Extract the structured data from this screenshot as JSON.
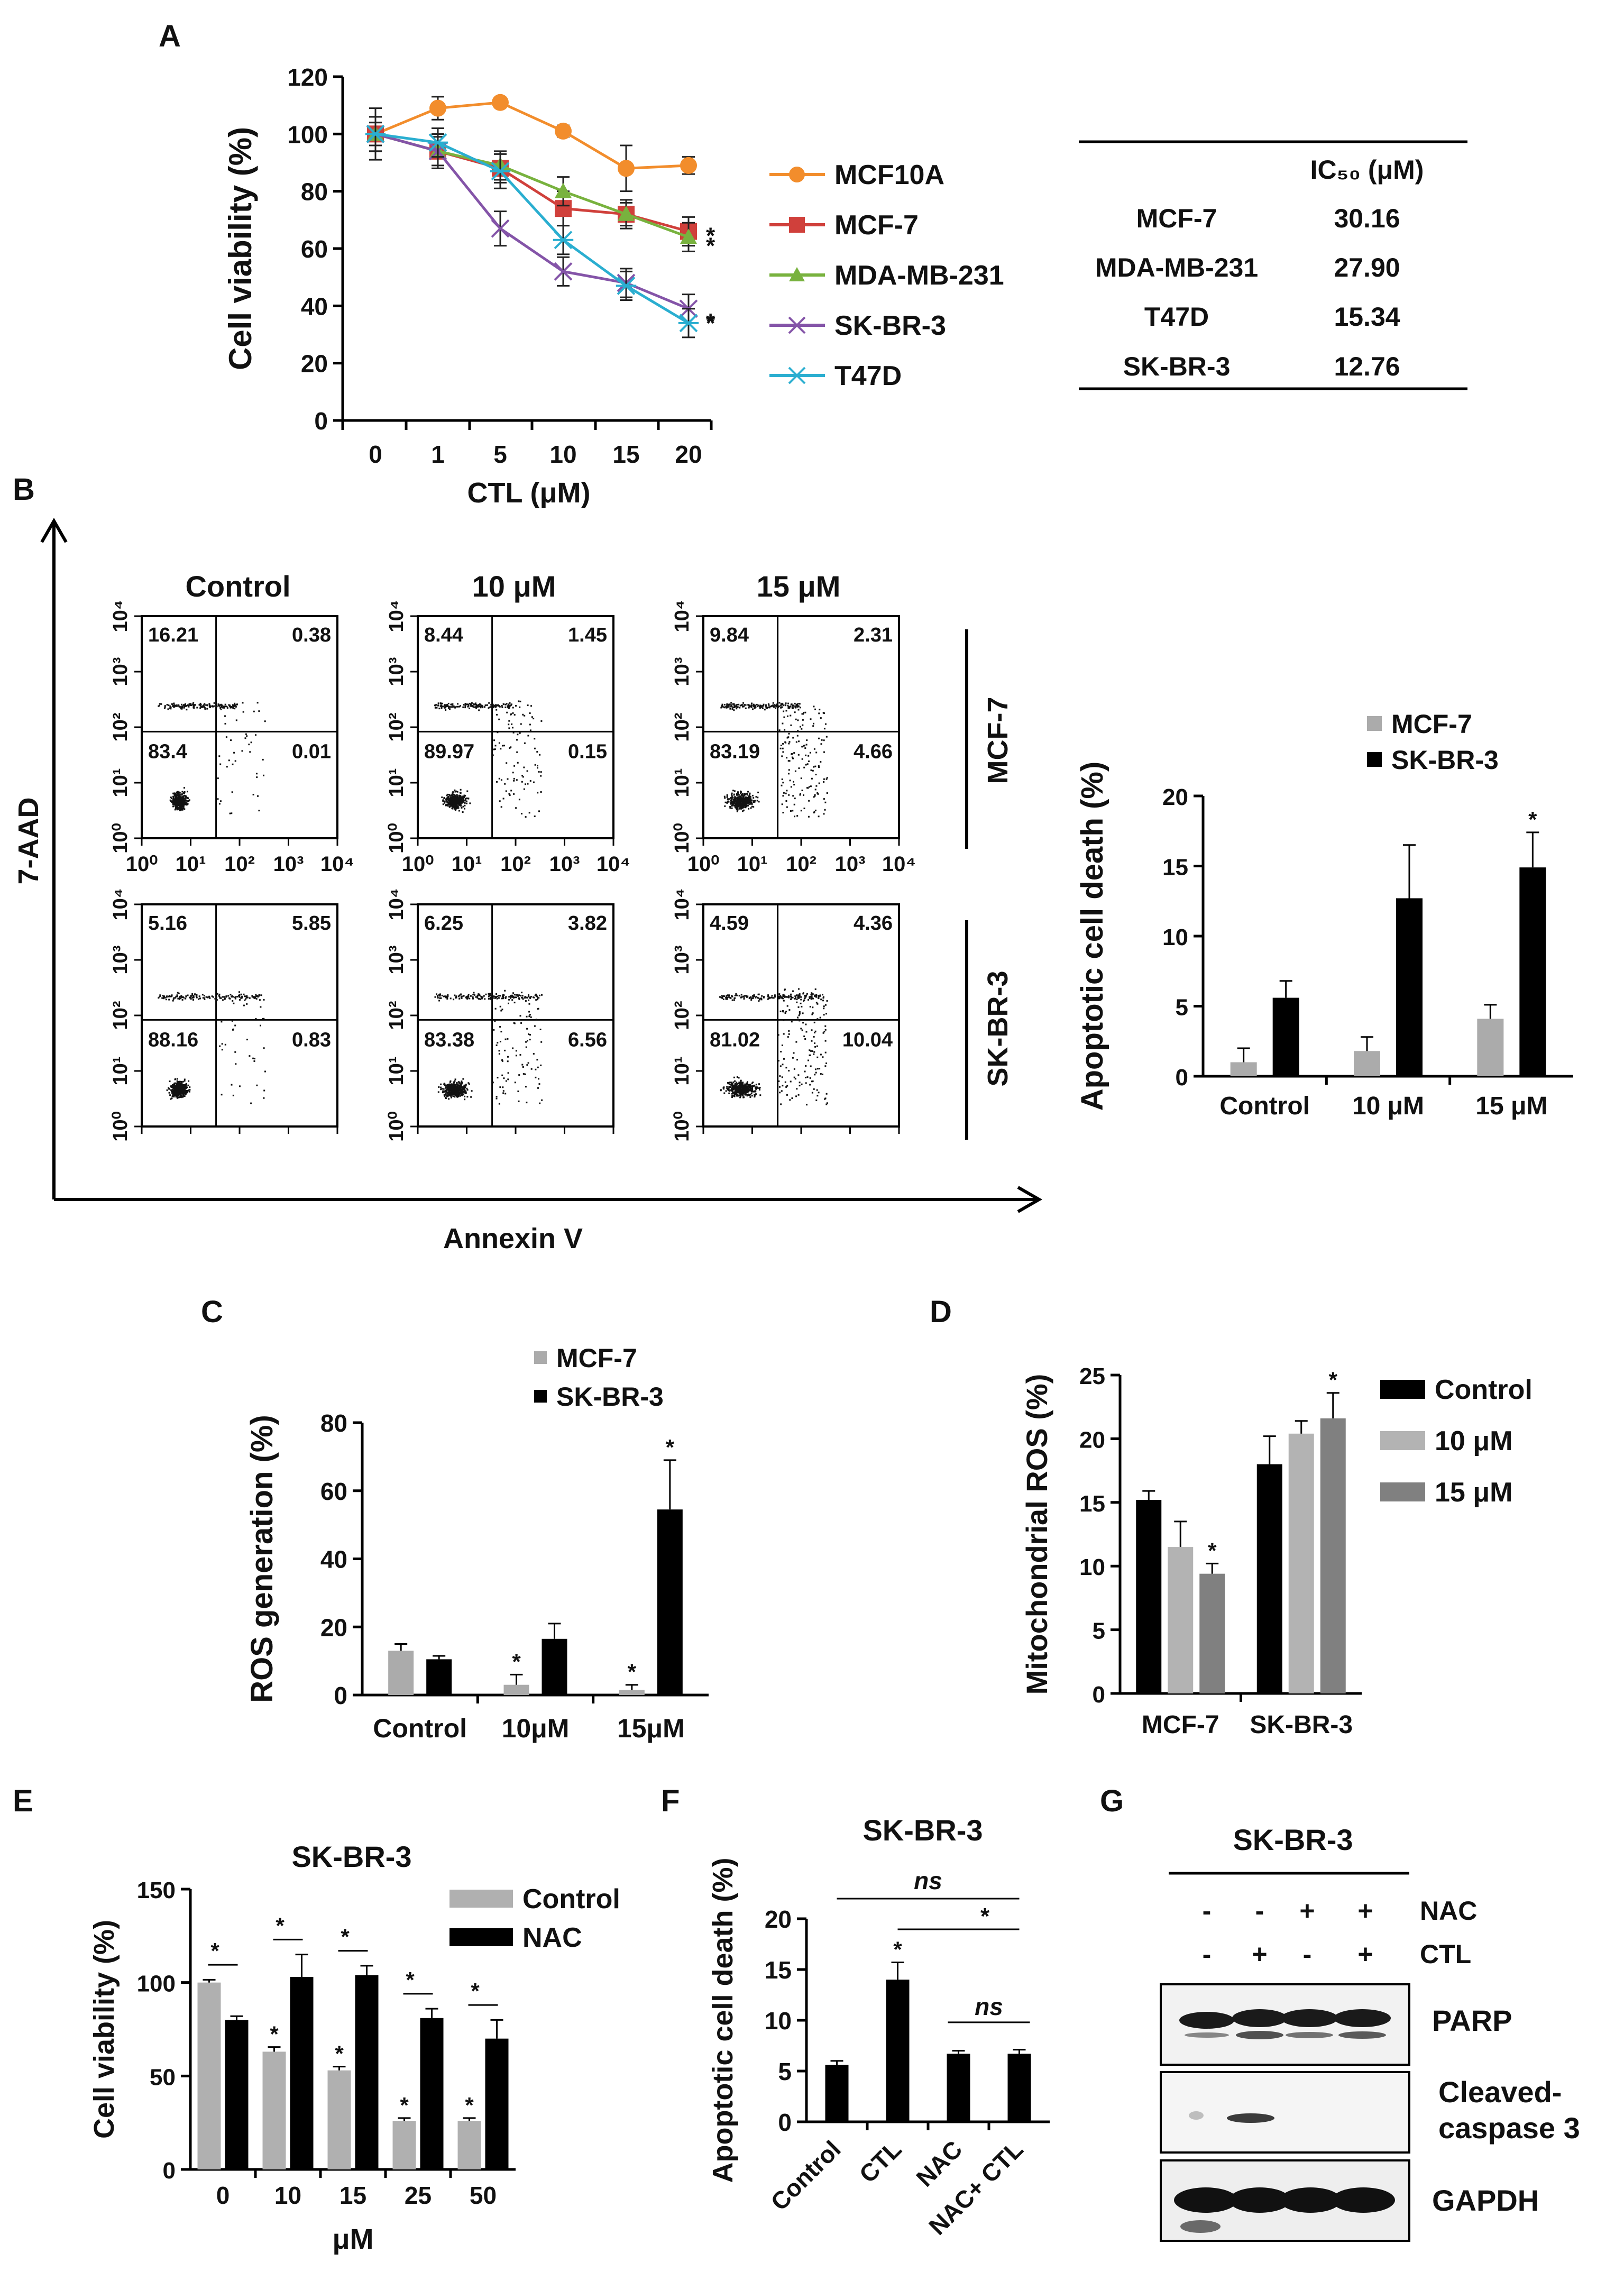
{
  "panel_letters": [
    "A",
    "B",
    "C",
    "D",
    "E",
    "F",
    "G"
  ],
  "chart_data": [
    {
      "panel": "A",
      "type": "line",
      "xlabel": "CTL (μM)",
      "ylabel": "Cell viability (%)",
      "categories": [
        "0",
        "1",
        "5",
        "10",
        "15",
        "20"
      ],
      "ylim": [
        0,
        120
      ],
      "yticks": [
        0,
        20,
        40,
        60,
        80,
        100,
        120
      ],
      "series": [
        {
          "name": "MCF10A",
          "color": "#f28d2c",
          "marker": "circle",
          "values": [
            100,
            109,
            111,
            101,
            88,
            89
          ],
          "err": [
            9,
            4,
            0,
            2,
            8,
            3
          ],
          "sig": false
        },
        {
          "name": "MCF-7",
          "color": "#d0403b",
          "marker": "square",
          "values": [
            100,
            94,
            88,
            74,
            72,
            66
          ],
          "err": [
            4,
            6,
            5,
            6,
            4,
            5
          ],
          "sig": true
        },
        {
          "name": "MDA-MB-231",
          "color": "#78b23e",
          "marker": "triangle",
          "values": [
            100,
            94,
            89,
            80,
            72,
            64
          ],
          "err": [
            4,
            5,
            5,
            5,
            5,
            5
          ],
          "sig": true
        },
        {
          "name": "SK-BR-3",
          "color": "#8454a8",
          "marker": "x",
          "values": [
            100,
            94,
            67,
            52,
            48,
            39
          ],
          "err": [
            6,
            6,
            6,
            5,
            5,
            5
          ],
          "sig": true
        },
        {
          "name": "T47D",
          "color": "#2aaed0",
          "marker": "star",
          "values": [
            100,
            97,
            87,
            63,
            47,
            34
          ],
          "err": [
            6,
            5,
            6,
            5,
            5,
            5
          ],
          "sig": true
        }
      ]
    },
    {
      "panel": "B",
      "type": "bar",
      "ylabel": "Apoptotic cell death (%)",
      "categories": [
        "Control",
        "10 μM",
        "15 μM"
      ],
      "ylim": [
        0,
        20
      ],
      "yticks": [
        0,
        5,
        10,
        15,
        20
      ],
      "series": [
        {
          "name": "MCF-7",
          "color": "#ababab",
          "values": [
            1,
            1.8,
            4.1
          ],
          "err": [
            1,
            1,
            1
          ],
          "sig": [
            false,
            false,
            false
          ]
        },
        {
          "name": "SK-BR-3",
          "color": "#000000",
          "values": [
            5.6,
            12.7,
            14.9
          ],
          "err": [
            1.2,
            3.8,
            2.5
          ],
          "sig": [
            false,
            false,
            true
          ]
        }
      ]
    },
    {
      "panel": "C",
      "type": "bar",
      "ylabel": "ROS generation (%)",
      "categories": [
        "Control",
        "10μM",
        "15μM"
      ],
      "ylim": [
        0,
        80
      ],
      "yticks": [
        0,
        20,
        40,
        60,
        80
      ],
      "series": [
        {
          "name": "MCF-7",
          "color": "#ababab",
          "values": [
            13,
            3,
            1.5
          ],
          "err": [
            2,
            3,
            1.5
          ],
          "sig": [
            false,
            true,
            true
          ]
        },
        {
          "name": "SK-BR-3",
          "color": "#000000",
          "values": [
            10.5,
            16.5,
            54.5
          ],
          "err": [
            1,
            4.5,
            14.5
          ],
          "sig": [
            false,
            false,
            true
          ]
        }
      ]
    },
    {
      "panel": "D",
      "type": "bar",
      "ylabel": "Mitochondrial ROS (%)",
      "categories": [
        "MCF-7",
        "SK-BR-3"
      ],
      "ylim": [
        0,
        25
      ],
      "yticks": [
        0,
        5,
        10,
        15,
        20,
        25
      ],
      "series": [
        {
          "name": "Control",
          "color": "#000000",
          "values": [
            15.2,
            18
          ],
          "err": [
            0.7,
            2.2
          ],
          "sig": [
            false,
            false
          ]
        },
        {
          "name": "10 μM",
          "color": "#b3b3b3",
          "values": [
            11.5,
            20.4
          ],
          "err": [
            2,
            1
          ],
          "sig": [
            false,
            false
          ]
        },
        {
          "name": "15 μM",
          "color": "#808080",
          "values": [
            9.4,
            21.6
          ],
          "err": [
            0.8,
            2
          ],
          "sig": [
            true,
            true
          ]
        }
      ]
    },
    {
      "panel": "E",
      "type": "bar",
      "title": "SK-BR-3",
      "ylabel": "Cell viability (%)",
      "xlabel": "μM",
      "categories": [
        "0",
        "10",
        "15",
        "25",
        "50"
      ],
      "ylim": [
        0,
        150
      ],
      "yticks": [
        0,
        50,
        100,
        150
      ],
      "series": [
        {
          "name": "Control",
          "color": "#b0b0b0",
          "values": [
            100,
            63,
            53,
            26,
            26
          ],
          "err": [
            1.5,
            2.5,
            2,
            1.5,
            1.5
          ],
          "sig": [
            false,
            true,
            true,
            true,
            true
          ]
        },
        {
          "name": "NAC",
          "color": "#000000",
          "values": [
            80,
            103,
            104,
            81,
            70
          ],
          "err": [
            2,
            12,
            5,
            5,
            10
          ],
          "sig": [
            false,
            false,
            false,
            false,
            false
          ]
        }
      ],
      "brackets": [
        "*",
        "*",
        "*",
        "*",
        "*"
      ]
    },
    {
      "panel": "F",
      "type": "bar",
      "title": "SK-BR-3",
      "ylabel": "Apoptotic cell death (%)",
      "categories": [
        "Control",
        "CTL",
        "NAC",
        "NAC+ CTL"
      ],
      "ylim": [
        0,
        20
      ],
      "yticks": [
        0,
        5,
        10,
        15,
        20
      ],
      "series": [
        {
          "name": "",
          "color": "#000000",
          "values": [
            5.6,
            14,
            6.7,
            6.7
          ],
          "err": [
            0.4,
            1.7,
            0.3,
            0.4
          ],
          "sig": [
            false,
            true,
            false,
            false
          ]
        }
      ],
      "brackets": [
        "ns",
        "*",
        "ns"
      ]
    }
  ],
  "ic50_table": {
    "header": [
      "",
      "IC₅₀ (μM)"
    ],
    "rows": [
      [
        "MCF-7",
        "30.16"
      ],
      [
        "MDA-MB-231",
        "27.90"
      ],
      [
        "T47D",
        "15.34"
      ],
      [
        "SK-BR-3",
        "12.76"
      ]
    ]
  },
  "flow": {
    "col_titles": [
      "Control",
      "10 μM",
      "15 μM"
    ],
    "row_titles": [
      "MCF-7",
      "SK-BR-3"
    ],
    "ylabel": "7-AAD",
    "xlabel": "Annexin V",
    "tick_labels": [
      "10⁰",
      "10¹",
      "10²",
      "10³",
      "10⁴"
    ],
    "plots": [
      [
        [
          "16.21",
          "0.38",
          "83.4",
          "0.01"
        ],
        [
          "8.44",
          "1.45",
          "89.97",
          "0.15"
        ],
        [
          "9.84",
          "2.31",
          "83.19",
          "4.66"
        ]
      ],
      [
        [
          "5.16",
          "5.85",
          "88.16",
          "0.83"
        ],
        [
          "6.25",
          "3.82",
          "83.38",
          "6.56"
        ],
        [
          "4.59",
          "4.36",
          "81.02",
          "10.04"
        ]
      ]
    ]
  },
  "western": {
    "title": "SK-BR-3",
    "conditions": [
      {
        "label": "NAC",
        "signs": [
          "-",
          "-",
          "+",
          "+"
        ]
      },
      {
        "label": "CTL",
        "signs": [
          "-",
          "+",
          "-",
          "+"
        ]
      }
    ],
    "blots": [
      "PARP",
      "Cleaved-\ncaspase 3",
      "GAPDH"
    ]
  }
}
